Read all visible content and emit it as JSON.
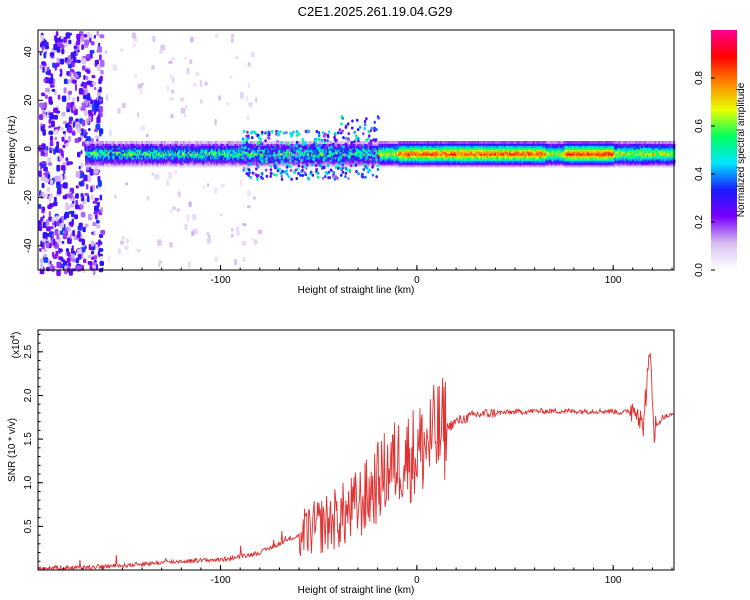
{
  "title": "C2E1.2025.261.19.04.G29",
  "chart_data": [
    {
      "type": "heatmap",
      "title": "C2E1.2025.261.19.04.G29",
      "xlabel": "Height of straight line (km)",
      "ylabel": "Frequency (Hz)",
      "xlim": [
        -193,
        131
      ],
      "ylim": [
        -50,
        49
      ],
      "xticks": [
        -100,
        0,
        100
      ],
      "yticks": [
        -40,
        -20,
        0,
        20,
        40
      ],
      "description_band": {
        "x_start": -169,
        "x_end": 131,
        "center_freq": -2,
        "half_width": 3
      },
      "colorbar": {
        "label": "Normalized spectral amplitude",
        "range": [
          0.0,
          1.0
        ],
        "ticks": [
          0.0,
          0.2,
          0.4,
          0.6,
          0.8
        ],
        "colors": [
          "#ffffff",
          "#d8bff0",
          "#7a00ff",
          "#1a1aff",
          "#00e5ff",
          "#00ff60",
          "#e8ff00",
          "#ff8800",
          "#ff0000",
          "#ff0090"
        ]
      }
    },
    {
      "type": "line",
      "xlabel": "Height of straight line (km)",
      "ylabel": "SNR (10 * v/v)",
      "multiplier_label": "(x10",
      "multiplier_exp": "4",
      "multiplier_close": ")",
      "xlim": [
        -193,
        131
      ],
      "ylim": [
        0,
        2.75
      ],
      "xticks": [
        -100,
        0,
        100
      ],
      "yticks": [
        0.5,
        1.0,
        1.5,
        2.0,
        2.5
      ],
      "line_color": "#e03030",
      "series": [
        {
          "name": "SNR",
          "x": [
            -193,
            -170,
            -150,
            -140,
            -120,
            -100,
            -90,
            -80,
            -70,
            -60,
            -55,
            -50,
            -45,
            -40,
            -35,
            -30,
            -25,
            -20,
            -15,
            -10,
            -5,
            0,
            5,
            10,
            20,
            30,
            40,
            60,
            80,
            100,
            105,
            110,
            112,
            115,
            117,
            119,
            121,
            125,
            131
          ],
          "values": [
            0.02,
            0.03,
            0.05,
            0.07,
            0.1,
            0.12,
            0.15,
            0.2,
            0.3,
            0.4,
            0.45,
            0.5,
            0.55,
            0.6,
            0.65,
            0.75,
            0.85,
            1.0,
            1.15,
            1.25,
            1.3,
            1.35,
            1.45,
            1.55,
            1.7,
            1.78,
            1.8,
            1.82,
            1.82,
            1.82,
            1.8,
            1.85,
            1.9,
            1.6,
            2.1,
            2.45,
            1.6,
            1.75,
            1.78
          ]
        }
      ]
    }
  ]
}
